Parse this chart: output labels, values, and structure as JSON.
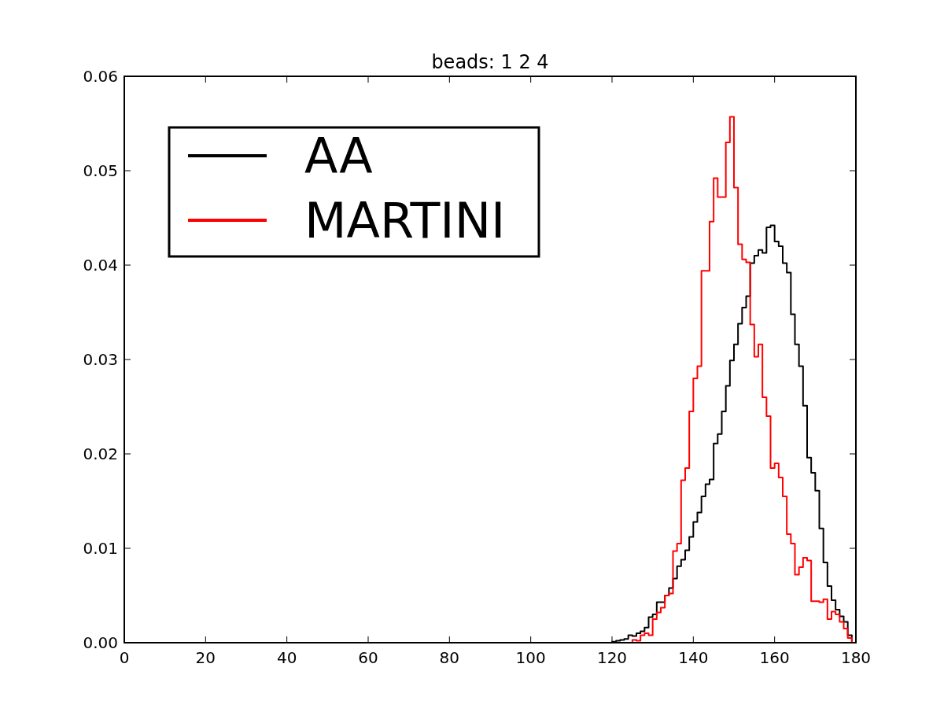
{
  "chart_data": {
    "type": "histogram",
    "title": "beads: 1 2 4",
    "bins": [
      115,
      116,
      117,
      118,
      119,
      120,
      121,
      122,
      123,
      124,
      125,
      126,
      127,
      128,
      129,
      130,
      131,
      132,
      133,
      134,
      135,
      136,
      137,
      138,
      139,
      140,
      141,
      142,
      143,
      144,
      145,
      146,
      147,
      148,
      149,
      150,
      151,
      152,
      153,
      154,
      155,
      156,
      157,
      158,
      159,
      160,
      161,
      162,
      163,
      164,
      165,
      166,
      167,
      168,
      169,
      170,
      171,
      172,
      173,
      174,
      175,
      176,
      177,
      178,
      179,
      180
    ],
    "series": [
      {
        "name": "AA",
        "color": "#000000",
        "values": [
          0,
          0,
          0,
          0,
          0,
          0.0001,
          0.0002,
          0.0003,
          0.0004,
          0.0008,
          0.0007,
          0.001,
          0.0012,
          0.0016,
          0.0027,
          0.003,
          0.0043,
          0.0043,
          0.005,
          0.0058,
          0.0068,
          0.0081,
          0.0088,
          0.0098,
          0.0112,
          0.0128,
          0.0138,
          0.0155,
          0.0168,
          0.0173,
          0.0211,
          0.0221,
          0.0245,
          0.0272,
          0.0299,
          0.0316,
          0.0338,
          0.0355,
          0.0367,
          0.0402,
          0.041,
          0.0416,
          0.0413,
          0.044,
          0.0442,
          0.0425,
          0.042,
          0.0402,
          0.0392,
          0.0348,
          0.0316,
          0.0293,
          0.0251,
          0.0196,
          0.018,
          0.0161,
          0.0121,
          0.0085,
          0.006,
          0.0045,
          0.0035,
          0.0028,
          0.0022,
          0.0008,
          0
        ]
      },
      {
        "name": "MARTINI",
        "color": "#ff0000",
        "values": [
          0,
          0,
          0,
          0,
          0,
          0,
          0,
          0,
          0,
          0,
          0.0003,
          0.0002,
          0.0008,
          0.001,
          0.0008,
          0.0025,
          0.0032,
          0.0037,
          0.005,
          0.0052,
          0.0097,
          0.0105,
          0.0172,
          0.0185,
          0.0245,
          0.028,
          0.0293,
          0.0394,
          0.0394,
          0.0446,
          0.0492,
          0.0472,
          0.0472,
          0.053,
          0.0557,
          0.0482,
          0.0422,
          0.0406,
          0.0403,
          0.0337,
          0.0303,
          0.0316,
          0.026,
          0.024,
          0.0185,
          0.019,
          0.0175,
          0.0155,
          0.0115,
          0.0105,
          0.0072,
          0.008,
          0.009,
          0.0087,
          0.0044,
          0.0044,
          0.0043,
          0.0046,
          0.0025,
          0.0033,
          0.003,
          0.0022,
          0.0015,
          0.0005,
          0
        ]
      }
    ],
    "xlim": [
      0,
      180
    ],
    "xticks": [
      0,
      20,
      40,
      60,
      80,
      100,
      120,
      140,
      160,
      180
    ],
    "ylim": [
      0,
      0.06
    ],
    "yticks": [
      {
        "value": 0,
        "label": "0.00"
      },
      {
        "value": 0.01,
        "label": "0.01"
      },
      {
        "value": 0.02,
        "label": "0.02"
      },
      {
        "value": 0.03,
        "label": "0.03"
      },
      {
        "value": 0.04,
        "label": "0.04"
      },
      {
        "value": 0.05,
        "label": "0.05"
      },
      {
        "value": 0.06,
        "label": "0.06"
      }
    ],
    "legend": "top left",
    "grid": false
  }
}
